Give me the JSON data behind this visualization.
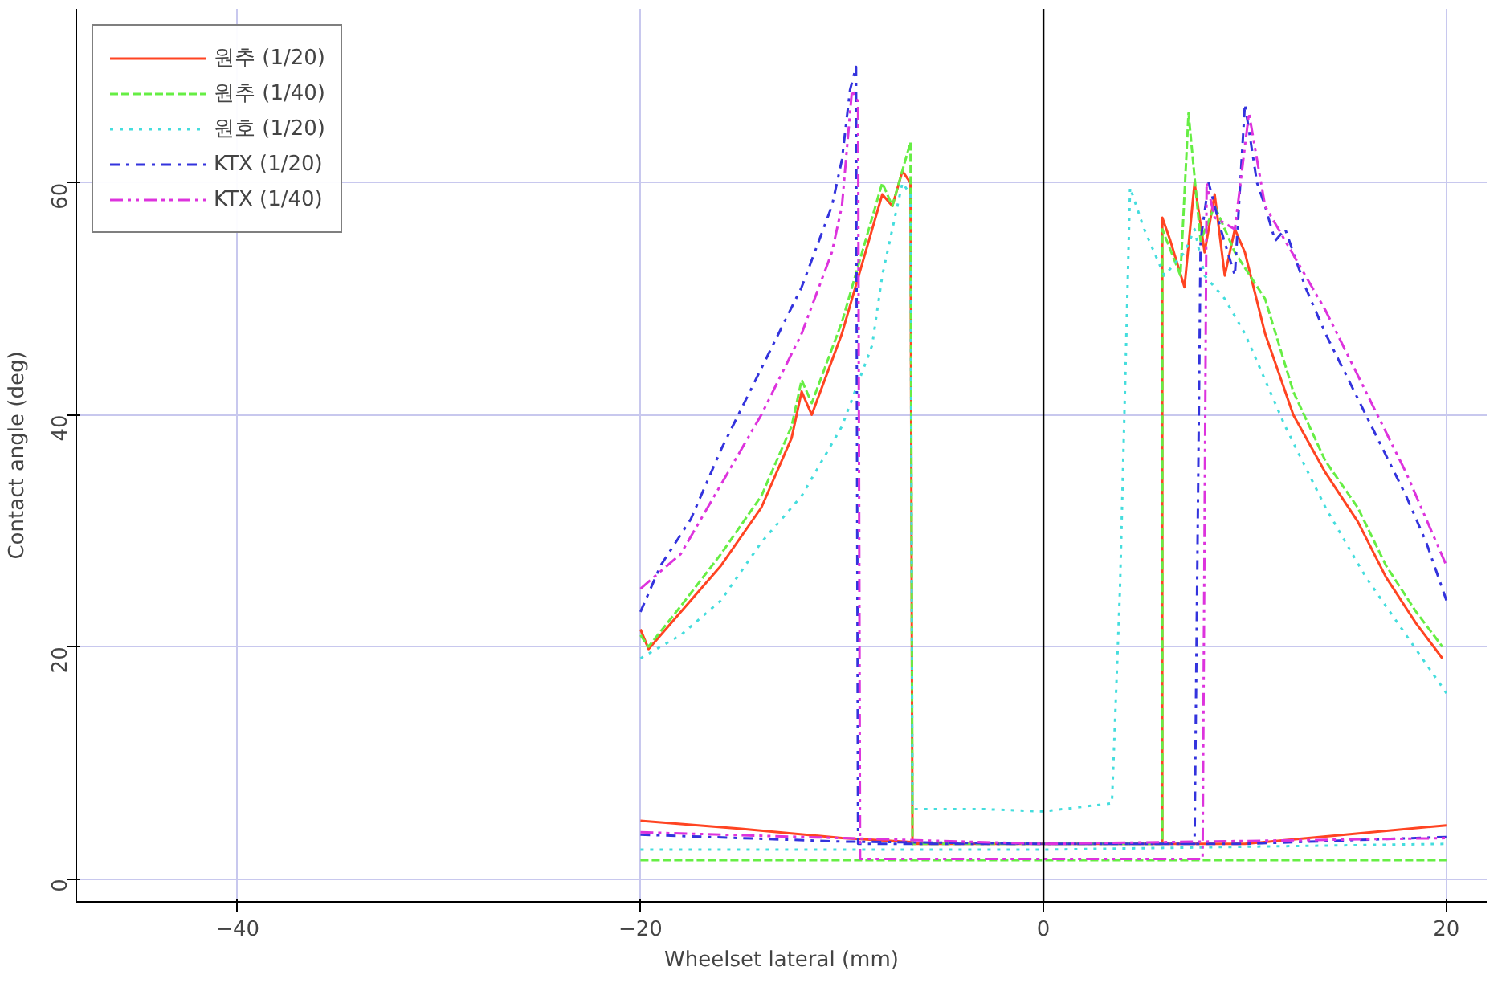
{
  "chart_data": {
    "type": "line",
    "xlabel": "Wheelset lateral (mm)",
    "ylabel": "Contact angle (deg)",
    "xlim": [
      -48,
      22
    ],
    "ylim": [
      -2,
      75
    ],
    "xticks": [
      -40,
      -20,
      0,
      20
    ],
    "yticks": [
      0,
      20,
      40,
      60
    ],
    "grid": true,
    "legend": "top left",
    "ref_lines": [
      {
        "axis": "x",
        "value": 0,
        "color": "#000000"
      }
    ],
    "series": [
      {
        "name": "원추 (1/20)",
        "color": "#ff4422",
        "line_style": "solid",
        "x": [
          -20,
          -19.6,
          -18,
          -16,
          -14,
          -12.5,
          -12,
          -11.5,
          -10,
          -8.5,
          -8,
          -7.5,
          -7,
          -6.6,
          -6.5,
          0,
          5.9,
          5.9,
          6.3,
          7,
          7.5,
          8,
          8.5,
          9,
          9.5,
          10,
          11,
          12.4,
          14,
          15.6,
          17,
          18.5,
          19.8,
          null,
          -20,
          -15,
          -10,
          -5,
          0,
          5,
          10,
          15,
          20
        ],
        "values": [
          21.5,
          19.8,
          23,
          27,
          32,
          38,
          42,
          40,
          47,
          56,
          59,
          58,
          61,
          60,
          3,
          3,
          3,
          57,
          55,
          51,
          60,
          54,
          59,
          52,
          56,
          54,
          47,
          40,
          35,
          30.8,
          26,
          22,
          19,
          null,
          5,
          4.3,
          3.5,
          3,
          3,
          3,
          3,
          3.8,
          4.6
        ]
      },
      {
        "name": "원추 (1/40)",
        "color": "#66ee44",
        "line_style": "dashed",
        "x": [
          -20,
          -19.6,
          -18,
          -16,
          -14,
          -12.5,
          -12,
          -11.5,
          -10,
          -8.5,
          -8,
          -7.5,
          -6.6,
          -6.5,
          0,
          5.9,
          5.9,
          6.8,
          7.2,
          7.8,
          8.5,
          9.5,
          11,
          12.4,
          14,
          15.6,
          17,
          18.5,
          19.8,
          null,
          -20,
          0,
          20
        ],
        "values": [
          21,
          20,
          23.5,
          28,
          33,
          39,
          43,
          41,
          48,
          57,
          60,
          58,
          63.5,
          3,
          3,
          3,
          56,
          52,
          66,
          55,
          58,
          54,
          50,
          42,
          36,
          32,
          27,
          23,
          20,
          null,
          1.6,
          1.6,
          1.6
        ]
      },
      {
        "name": "원호 (1/20)",
        "color": "#44dddd",
        "line_style": "dotted",
        "x": [
          -20,
          -18,
          -16,
          -14,
          -12,
          -10,
          -8.5,
          -8,
          -7.5,
          -7,
          -6.6,
          -6.5,
          -3,
          0,
          3.4,
          3.8,
          4.3,
          5,
          6,
          7,
          7.5,
          8,
          9,
          10,
          12,
          14,
          16,
          18,
          20,
          null,
          -20,
          0,
          20
        ],
        "values": [
          19,
          21,
          24,
          29,
          33,
          39,
          46,
          52,
          56,
          60,
          59,
          6,
          6,
          5.8,
          6.5,
          25,
          59.6,
          56,
          52,
          54,
          56,
          52,
          50,
          47,
          39,
          32,
          26,
          21,
          16,
          null,
          2.5,
          2.5,
          3
        ]
      },
      {
        "name": "KTX (1/20)",
        "color": "#3333dd",
        "line_style": "dashdot",
        "x": [
          -20,
          -19,
          -17.5,
          -16,
          -14,
          -12,
          -10.5,
          -10,
          -9.6,
          -9.3,
          -9.2,
          0,
          7.5,
          7.8,
          8.2,
          8.8,
          9.5,
          10,
          10.6,
          11,
          11.5,
          12,
          13,
          14,
          16,
          18,
          19,
          20,
          null,
          -20,
          -10,
          0,
          10,
          15,
          20
        ],
        "values": [
          23,
          27,
          31,
          37,
          44,
          51,
          58,
          62,
          68,
          70,
          3,
          3,
          3,
          55,
          60,
          56,
          52,
          66.8,
          60,
          58,
          55,
          56,
          51,
          47,
          40,
          33,
          29,
          24,
          null,
          3.8,
          3.2,
          3,
          3,
          3.3,
          3.6
        ]
      },
      {
        "name": "KTX (1/40)",
        "color": "#dd33dd",
        "line_style": "dashdotdot",
        "x": [
          -20,
          -18,
          -16,
          -14,
          -12,
          -10.5,
          -10,
          -9.5,
          -9.2,
          -9.1,
          0,
          7.9,
          8.1,
          8.5,
          9.5,
          10.2,
          11,
          12,
          14,
          16,
          18,
          20,
          null,
          -20,
          0,
          20
        ],
        "values": [
          25,
          28,
          34,
          40,
          47,
          54,
          58,
          68,
          67,
          1.7,
          1.7,
          1.7,
          60,
          57,
          56,
          66,
          58,
          55,
          49,
          42,
          35,
          27,
          null,
          4,
          3,
          3.5
        ]
      }
    ]
  }
}
